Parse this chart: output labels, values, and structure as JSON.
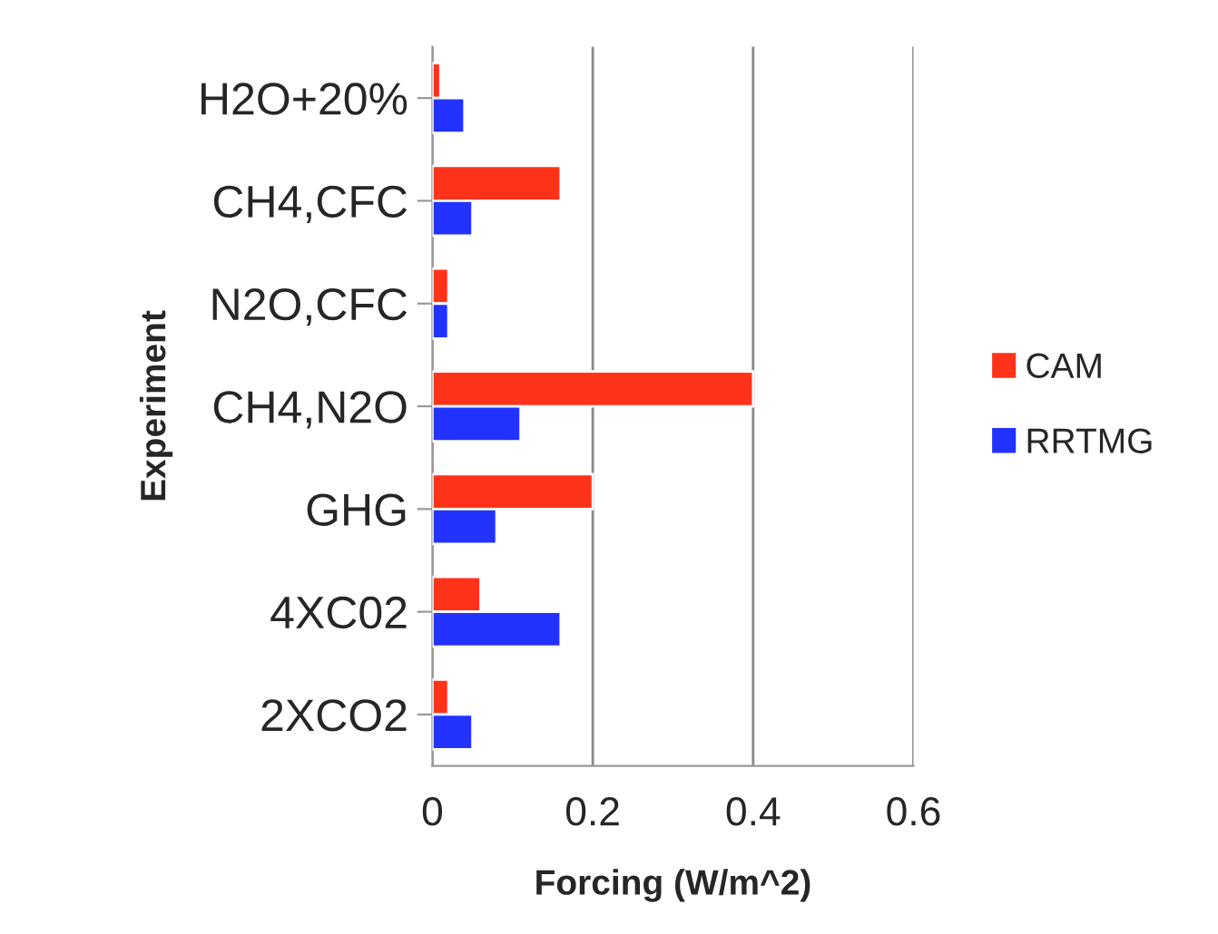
{
  "chart_data": {
    "type": "bar",
    "orientation": "horizontal",
    "xlabel": "Forcing (W/m^2)",
    "ylabel": "Experiment",
    "categories": [
      "H2O+20%",
      "CH4,CFC",
      "N2O,CFC",
      "CH4,N2O",
      "GHG",
      "4XC02",
      "2XCO2"
    ],
    "series": [
      {
        "name": "CAM",
        "color": "#ff3319",
        "values": [
          0.01,
          0.16,
          0.02,
          0.4,
          0.2,
          0.06,
          0.02
        ]
      },
      {
        "name": "RRTMG",
        "color": "#2233ff",
        "values": [
          0.04,
          0.05,
          0.02,
          0.11,
          0.08,
          0.16,
          0.05
        ]
      }
    ],
    "xlim": [
      0,
      0.6
    ],
    "xticks": [
      0,
      0.2,
      0.4,
      0.6
    ],
    "grid": "x",
    "legend": "right"
  }
}
